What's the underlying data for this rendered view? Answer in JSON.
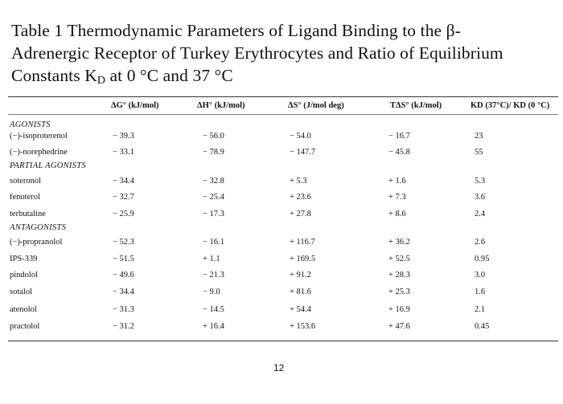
{
  "caption": {
    "line1": "Table 1 Thermodynamic Parameters of Ligand Binding to the β-",
    "line2": "Adrenergic Receptor of Turkey Erythrocytes and Ratio of Equilibrium",
    "line3_prefix": "Constants K",
    "line3_sub": "D",
    "line3_suffix": " at 0 °C and 37 °C"
  },
  "headers": {
    "dg": "ΔG° (kJ/mol)",
    "dh": "ΔH° (kJ/mol)",
    "ds": "ΔS° (J/mol deg)",
    "tds": "TΔS° (kJ/mol)",
    "kd_ratio": "KD (37°C)/ KD (0 °C)"
  },
  "groups": {
    "agonists": "AGONISTS",
    "partial_agonists": "PARTIAL AGONISTS",
    "antagonists": "ANTAGONISTS"
  },
  "rows": [
    {
      "name": "(−)-isoproterenol",
      "dg": "− 39.3",
      "dh": "− 56.0",
      "ds": "− 54.0",
      "tds": "− 16.7",
      "kd": "23"
    },
    {
      "name": "(−)-norephedrine",
      "dg": "− 33.1",
      "dh": "− 78.9",
      "ds": "− 147.7",
      "tds": "− 45.8",
      "kd": "55"
    },
    {
      "name": "soteronol",
      "dg": "− 34.4",
      "dh": "− 32.8",
      "ds": "+ 5.3",
      "tds": "+ 1.6",
      "kd": "5.3"
    },
    {
      "name": "fenoterol",
      "dg": "− 32.7",
      "dh": "− 25.4",
      "ds": "+ 23.6",
      "tds": "+ 7.3",
      "kd": "3.6"
    },
    {
      "name": "terbutaline",
      "dg": "− 25.9",
      "dh": "− 17.3",
      "ds": "+ 27.8",
      "tds": "+ 8.6",
      "kd": "2.4"
    },
    {
      "name": "(−)-propranolol",
      "dg": "− 52.3",
      "dh": "− 16.1",
      "ds": "+ 116.7",
      "tds": "+ 36.2",
      "kd": "2.6"
    },
    {
      "name": "IPS-339",
      "dg": "− 51.5",
      "dh": "+ 1.1",
      "ds": "+ 169.5",
      "tds": "+ 52.5",
      "kd": "0.95"
    },
    {
      "name": "pindolol",
      "dg": "− 49.6",
      "dh": "− 21.3",
      "ds": "+ 91.2",
      "tds": "+ 28.3",
      "kd": "3.0"
    },
    {
      "name": "sotalol",
      "dg": "− 34.4",
      "dh": "− 9.0",
      "ds": "+ 81.6",
      "tds": "+ 25.3",
      "kd": "1.6"
    },
    {
      "name": "atenolol",
      "dg": "− 31.3",
      "dh": "− 14.5",
      "ds": "+ 54.4",
      "tds": "+ 16.9",
      "kd": "2.1"
    },
    {
      "name": "practolol",
      "dg": "− 31.2",
      "dh": "+ 16.4",
      "ds": "+ 153.6",
      "tds": "+ 47.6",
      "kd": "0.45"
    }
  ],
  "page_number": "12"
}
